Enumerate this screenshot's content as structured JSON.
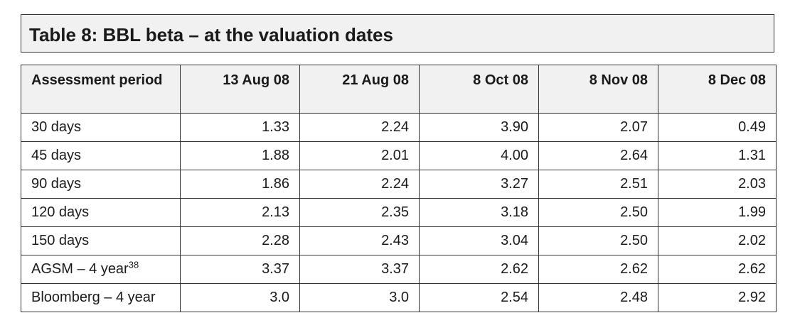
{
  "table": {
    "title": "Table 8: BBL beta – at the valuation dates",
    "first_header": "Assessment period",
    "columns": [
      "13 Aug 08",
      "21 Aug 08",
      "8 Oct 08",
      "8 Nov 08",
      "8 Dec 08"
    ],
    "rows": [
      {
        "label": "30 days",
        "sup": "",
        "values": [
          "1.33",
          "2.24",
          "3.90",
          "2.07",
          "0.49"
        ]
      },
      {
        "label": "45 days",
        "sup": "",
        "values": [
          "1.88",
          "2.01",
          "4.00",
          "2.64",
          "1.31"
        ]
      },
      {
        "label": "90 days",
        "sup": "",
        "values": [
          "1.86",
          "2.24",
          "3.27",
          "2.51",
          "2.03"
        ]
      },
      {
        "label": "120 days",
        "sup": "",
        "values": [
          "2.13",
          "2.35",
          "3.18",
          "2.50",
          "1.99"
        ]
      },
      {
        "label": "150 days",
        "sup": "",
        "values": [
          "2.28",
          "2.43",
          "3.04",
          "2.50",
          "2.02"
        ]
      },
      {
        "label": "AGSM – 4 year",
        "sup": "38",
        "values": [
          "3.37",
          "3.37",
          "2.62",
          "2.62",
          "2.62"
        ]
      },
      {
        "label": "Bloomberg – 4 year",
        "sup": "",
        "values": [
          "3.0",
          "3.0",
          "2.54",
          "2.48",
          "2.92"
        ]
      }
    ]
  }
}
